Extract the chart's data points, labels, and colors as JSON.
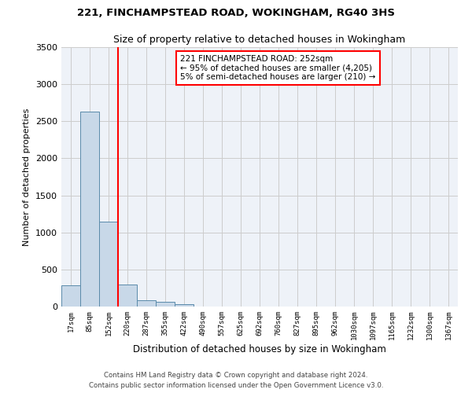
{
  "title1": "221, FINCHAMPSTEAD ROAD, WOKINGHAM, RG40 3HS",
  "title2": "Size of property relative to detached houses in Wokingham",
  "xlabel": "Distribution of detached houses by size in Wokingham",
  "ylabel": "Number of detached properties",
  "footnote1": "Contains HM Land Registry data © Crown copyright and database right 2024.",
  "footnote2": "Contains public sector information licensed under the Open Government Licence v3.0.",
  "bin_labels": [
    "17sqm",
    "85sqm",
    "152sqm",
    "220sqm",
    "287sqm",
    "355sqm",
    "422sqm",
    "490sqm",
    "557sqm",
    "625sqm",
    "692sqm",
    "760sqm",
    "827sqm",
    "895sqm",
    "962sqm",
    "1030sqm",
    "1097sqm",
    "1165sqm",
    "1232sqm",
    "1300sqm",
    "1367sqm"
  ],
  "bar_values": [
    290,
    2630,
    1150,
    300,
    90,
    60,
    35,
    0,
    0,
    0,
    0,
    0,
    0,
    0,
    0,
    0,
    0,
    0,
    0,
    0,
    0
  ],
  "bar_color": "#c8d8e8",
  "bar_edge_color": "#5a8aaa",
  "property_line_x": 3.0,
  "annotation_text": "221 FINCHAMPSTEAD ROAD: 252sqm\n← 95% of detached houses are smaller (4,205)\n5% of semi-detached houses are larger (210) →",
  "annotation_box_color": "white",
  "annotation_box_edge": "red",
  "vline_color": "red",
  "grid_color": "#cccccc",
  "background_color": "#eef2f8",
  "ylim": [
    0,
    3500
  ],
  "yticks": [
    0,
    500,
    1000,
    1500,
    2000,
    2500,
    3000,
    3500
  ]
}
